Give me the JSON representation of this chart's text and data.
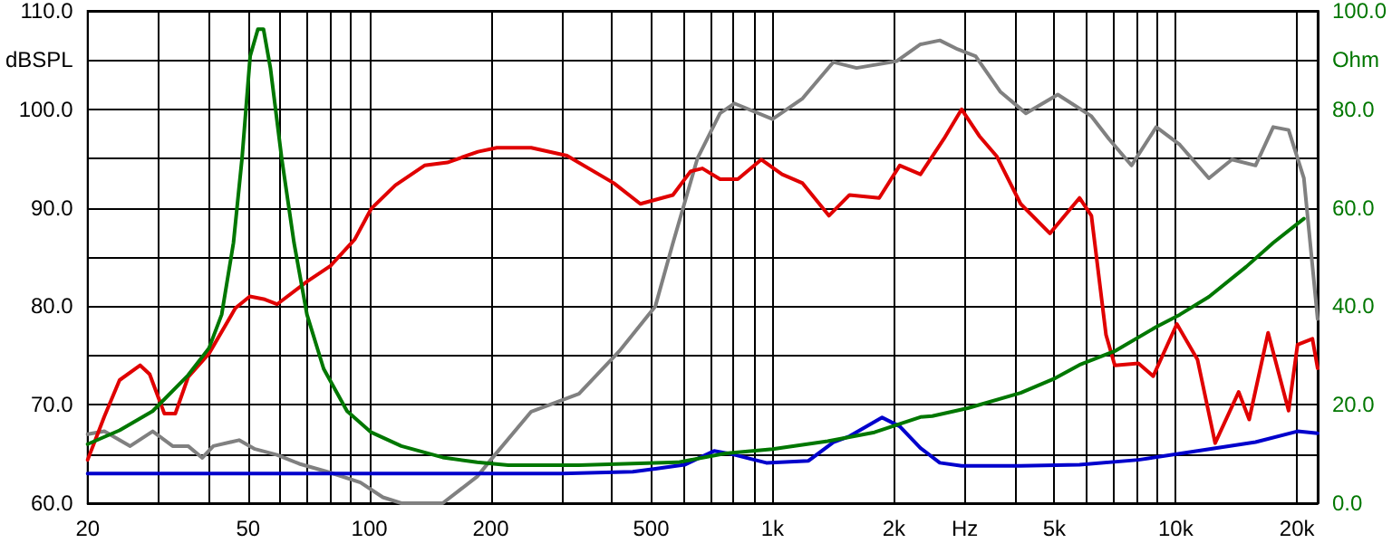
{
  "chart_data": {
    "type": "line",
    "log": "x",
    "grid": true,
    "marker": "none",
    "line_style": "solid",
    "xlim": [
      20,
      22500
    ],
    "ylim": [
      60,
      110
    ],
    "y2lim": [
      0,
      100
    ],
    "xticks": [
      {
        "value": 20,
        "label": "20"
      },
      {
        "value": 30,
        "label": null
      },
      {
        "value": 40,
        "label": null
      },
      {
        "value": 50,
        "label": "50"
      },
      {
        "value": 60,
        "label": null
      },
      {
        "value": 70,
        "label": null
      },
      {
        "value": 80,
        "label": null
      },
      {
        "value": 90,
        "label": null
      },
      {
        "value": 100,
        "label": "100"
      },
      {
        "value": 200,
        "label": "200"
      },
      {
        "value": 300,
        "label": null
      },
      {
        "value": 400,
        "label": null
      },
      {
        "value": 500,
        "label": "500"
      },
      {
        "value": 600,
        "label": null
      },
      {
        "value": 700,
        "label": null
      },
      {
        "value": 800,
        "label": null
      },
      {
        "value": 900,
        "label": null
      },
      {
        "value": 1000,
        "label": "1k"
      },
      {
        "value": 2000,
        "label": "2k"
      },
      {
        "value": 3000,
        "label": "Hz"
      },
      {
        "value": 4000,
        "label": null
      },
      {
        "value": 5000,
        "label": "5k"
      },
      {
        "value": 6000,
        "label": null
      },
      {
        "value": 7000,
        "label": null
      },
      {
        "value": 8000,
        "label": null
      },
      {
        "value": 9000,
        "label": null
      },
      {
        "value": 10000,
        "label": "10k"
      },
      {
        "value": 20000,
        "label": "20k"
      }
    ],
    "yticks": [
      {
        "value": 60,
        "label": "60.0"
      },
      {
        "value": 65,
        "label": null
      },
      {
        "value": 70,
        "label": "70.0"
      },
      {
        "value": 75,
        "label": null
      },
      {
        "value": 80,
        "label": "80.0"
      },
      {
        "value": 85,
        "label": null
      },
      {
        "value": 90,
        "label": "90.0"
      },
      {
        "value": 95,
        "label": null
      },
      {
        "value": 100,
        "label": "100.0"
      },
      {
        "value": 105,
        "label": "dBSPL"
      },
      {
        "value": 110,
        "label": "110.0"
      }
    ],
    "y2ticks": [
      {
        "value": 0,
        "label": "0.0"
      },
      {
        "value": 10,
        "label": null
      },
      {
        "value": 20,
        "label": "20.0"
      },
      {
        "value": 30,
        "label": null
      },
      {
        "value": 40,
        "label": "40.0"
      },
      {
        "value": 50,
        "label": null
      },
      {
        "value": 60,
        "label": "60.0"
      },
      {
        "value": 70,
        "label": null
      },
      {
        "value": 80,
        "label": "80.0"
      },
      {
        "value": 90,
        "label": "Ohm"
      },
      {
        "value": 100,
        "label": "100.0"
      }
    ],
    "series": [
      {
        "color": "#808080",
        "x": [
          20,
          22,
          25.5,
          29,
          32.5,
          35.5,
          38.5,
          41,
          47.5,
          52,
          59,
          67,
          80,
          95,
          108,
          120,
          152,
          185,
          200,
          252,
          331,
          416,
          512,
          566,
          651,
          741,
          804,
          1000,
          1187,
          1416,
          1616,
          2035,
          2328,
          2600,
          2880,
          3190,
          3670,
          4250,
          5100,
          6180,
          6830,
          7770,
          8950,
          10240,
          12090,
          13790,
          15780,
          17460,
          19060,
          20800,
          22500
        ],
        "values": [
          67.0,
          67.3,
          65.8,
          67.3,
          65.8,
          65.8,
          64.6,
          65.8,
          66.4,
          65.5,
          64.9,
          64.0,
          63.1,
          62.1,
          60.6,
          60.0,
          60.0,
          62.7,
          64.4,
          69.3,
          71.1,
          75.4,
          80.0,
          86.4,
          95.0,
          99.6,
          100.6,
          99.0,
          101.1,
          104.8,
          104.2,
          104.9,
          106.6,
          107.0,
          106.1,
          105.4,
          101.8,
          99.6,
          101.5,
          99.3,
          97.0,
          94.3,
          98.2,
          96.4,
          93.0,
          94.9,
          94.3,
          98.2,
          97.9,
          93.0,
          78.7
        ]
      },
      {
        "color": "#0000cc",
        "x": [
          20,
          300,
          450,
          512,
          605,
          716,
          790,
          965,
          1228,
          1416,
          1552,
          1870,
          2068,
          2328,
          2600,
          2945,
          4125,
          5774,
          8086,
          11325,
          15780,
          20060,
          22500
        ],
        "values": [
          63.0,
          63.0,
          63.2,
          63.5,
          63.9,
          65.3,
          65.0,
          64.1,
          64.3,
          66.2,
          66.8,
          68.7,
          67.8,
          65.6,
          64.1,
          63.8,
          63.8,
          63.9,
          64.4,
          65.3,
          66.2,
          67.3,
          67.1
        ]
      },
      {
        "color": "#e00000",
        "x": [
          20,
          22,
          24,
          27,
          28.5,
          31,
          33,
          35.5,
          40,
          46.5,
          50.5,
          55,
          59,
          70,
          80,
          92,
          101,
          116,
          137,
          156,
          186,
          207,
          252,
          309,
          404,
          470,
          566,
          626,
          670,
          741,
          820,
          938,
          1056,
          1187,
          1380,
          1552,
          1839,
          2068,
          2328,
          2661,
          2945,
          3257,
          3603,
          4125,
          4876,
          5774,
          6180,
          6718,
          7064,
          8086,
          8798,
          10068,
          11325,
          12530,
          14330,
          15220,
          16956,
          19060,
          20060,
          21840,
          22500
        ],
        "values": [
          64.4,
          68.8,
          72.5,
          74.0,
          73.1,
          69.1,
          69.1,
          72.8,
          75.2,
          79.8,
          81.0,
          80.7,
          80.2,
          82.5,
          84.1,
          86.8,
          89.9,
          92.3,
          94.3,
          94.6,
          95.7,
          96.1,
          96.1,
          95.3,
          92.5,
          90.4,
          91.3,
          93.7,
          94.0,
          92.9,
          92.9,
          94.9,
          93.4,
          92.5,
          89.2,
          91.3,
          91.0,
          94.3,
          93.4,
          97.0,
          100.0,
          97.3,
          95.2,
          90.4,
          87.4,
          91.0,
          89.2,
          77.1,
          74.0,
          74.2,
          72.9,
          78.2,
          74.6,
          66.1,
          71.3,
          68.5,
          77.3,
          69.4,
          76.1,
          76.7,
          73.7
        ]
      },
      {
        "color": "#007700",
        "axis": "y2",
        "x": [
          20,
          24,
          29,
          35.5,
          40,
          43,
          46,
          48.3,
          50.6,
          52.9,
          54.6,
          56.8,
          60.6,
          65,
          70,
          77,
          88,
          101,
          120,
          152,
          185,
          221,
          331,
          582,
          764,
          1000,
          1370,
          1790,
          2328,
          2490,
          3050,
          4125,
          5030,
          5774,
          7064,
          8950,
          10240,
          12090,
          14950,
          17460,
          20800
        ],
        "values": [
          12.0,
          14.8,
          18.7,
          26.0,
          31.5,
          38.3,
          52.9,
          70.0,
          90.8,
          96.3,
          96.3,
          88.4,
          70.0,
          52.9,
          38.3,
          27.3,
          18.7,
          14.4,
          11.6,
          9.3,
          8.3,
          7.7,
          7.7,
          8.3,
          10.1,
          11.0,
          12.6,
          14.4,
          17.5,
          17.7,
          19.3,
          22.4,
          25.4,
          28.1,
          30.9,
          35.8,
          38.3,
          41.9,
          48.0,
          52.9,
          57.8
        ]
      }
    ]
  }
}
